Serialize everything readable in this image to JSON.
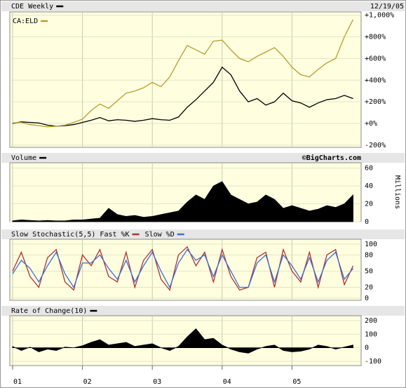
{
  "chart_data": [
    {
      "type": "line",
      "date": "12/19/05",
      "x": [
        2001,
        2001.125,
        2001.25,
        2001.375,
        2001.5,
        2001.625,
        2001.75,
        2001.875,
        2002,
        2002.125,
        2002.25,
        2002.375,
        2002.5,
        2002.625,
        2002.75,
        2002.875,
        2003,
        2003.125,
        2003.25,
        2003.375,
        2003.5,
        2003.625,
        2003.75,
        2003.875,
        2004,
        2004.125,
        2004.25,
        2004.375,
        2004.5,
        2004.625,
        2004.75,
        2004.875,
        2005,
        2005.125,
        2005.25,
        2005.375,
        2005.5,
        2005.625,
        2005.75,
        2005.875
      ],
      "series": [
        {
          "name": "CDE Weekly",
          "color": "#000000",
          "values": [
            0,
            15,
            10,
            5,
            -15,
            -25,
            -20,
            -10,
            10,
            30,
            55,
            25,
            35,
            30,
            20,
            30,
            45,
            35,
            30,
            60,
            150,
            220,
            300,
            380,
            520,
            450,
            300,
            200,
            230,
            170,
            200,
            280,
            210,
            190,
            150,
            190,
            220,
            230,
            260,
            230
          ]
        },
        {
          "name": "CA:ELD",
          "color": "#b89c2c",
          "values": [
            5,
            10,
            -10,
            -20,
            -30,
            -25,
            -15,
            10,
            40,
            120,
            180,
            140,
            210,
            280,
            300,
            330,
            380,
            340,
            430,
            580,
            720,
            680,
            640,
            760,
            770,
            680,
            600,
            570,
            620,
            660,
            700,
            620,
            520,
            450,
            430,
            500,
            560,
            600,
            800,
            960
          ]
        }
      ],
      "xlim": [
        2000.96,
        2005.99
      ],
      "xticks": [
        2001,
        2002,
        2003,
        2004,
        2005
      ],
      "ylim": [
        -220,
        1030
      ],
      "yticks": [
        {
          "value": -200,
          "label": "-200%"
        },
        {
          "value": 0,
          "label": "+0%"
        },
        {
          "value": 200,
          "label": "+200%"
        },
        {
          "value": 400,
          "label": "+400%"
        },
        {
          "value": 600,
          "label": "+600%"
        },
        {
          "value": 800,
          "label": "+800%"
        },
        {
          "value": 1000,
          "label": "+1,000%"
        }
      ],
      "grid": true
    },
    {
      "type": "area",
      "source": "©BigCharts.com",
      "y_label": "Millions",
      "x": [
        2001,
        2001.125,
        2001.25,
        2001.375,
        2001.5,
        2001.625,
        2001.75,
        2001.875,
        2002,
        2002.125,
        2002.25,
        2002.375,
        2002.5,
        2002.625,
        2002.75,
        2002.875,
        2003,
        2003.125,
        2003.25,
        2003.375,
        2003.5,
        2003.625,
        2003.75,
        2003.875,
        2004,
        2004.125,
        2004.25,
        2004.375,
        2004.5,
        2004.625,
        2004.75,
        2004.875,
        2005,
        2005.125,
        2005.25,
        2005.375,
        2005.5,
        2005.625,
        2005.75,
        2005.875
      ],
      "series": [
        {
          "name": "Volume",
          "color": "#000000",
          "values": [
            1,
            2,
            1.5,
            1,
            1.5,
            1,
            1,
            2,
            2,
            3,
            4,
            15,
            8,
            6,
            7,
            5,
            6,
            8,
            10,
            12,
            22,
            30,
            25,
            40,
            45,
            30,
            25,
            20,
            22,
            30,
            25,
            15,
            18,
            15,
            12,
            14,
            18,
            16,
            20,
            30
          ]
        }
      ],
      "xlim": [
        2000.96,
        2005.99
      ],
      "xticks": [
        2001,
        2002,
        2003,
        2004,
        2005
      ],
      "ylim": [
        0,
        66
      ],
      "yticks": [
        0,
        20,
        40,
        60
      ],
      "grid": true
    },
    {
      "type": "line",
      "x": [
        2001,
        2001.125,
        2001.25,
        2001.375,
        2001.5,
        2001.625,
        2001.75,
        2001.875,
        2002,
        2002.125,
        2002.25,
        2002.375,
        2002.5,
        2002.625,
        2002.75,
        2002.875,
        2003,
        2003.125,
        2003.25,
        2003.375,
        2003.5,
        2003.625,
        2003.75,
        2003.875,
        2004,
        2004.125,
        2004.25,
        2004.375,
        2004.5,
        2004.625,
        2004.75,
        2004.875,
        2005,
        2005.125,
        2005.25,
        2005.375,
        2005.5,
        2005.625,
        2005.75,
        2005.875
      ],
      "series": [
        {
          "name": "Slow Stochastic(5,5) Fast %K",
          "color": "#b03030",
          "values": [
            50,
            85,
            40,
            20,
            75,
            90,
            30,
            15,
            80,
            60,
            90,
            40,
            30,
            85,
            20,
            70,
            90,
            35,
            15,
            80,
            95,
            60,
            85,
            30,
            90,
            40,
            15,
            20,
            75,
            85,
            20,
            90,
            50,
            30,
            85,
            20,
            80,
            90,
            25,
            60
          ]
        },
        {
          "name": "Slow %D",
          "color": "#3a6fd8",
          "values": [
            45,
            70,
            55,
            30,
            60,
            85,
            45,
            20,
            65,
            65,
            80,
            55,
            35,
            70,
            30,
            60,
            85,
            50,
            20,
            65,
            90,
            70,
            80,
            40,
            80,
            50,
            20,
            20,
            65,
            80,
            30,
            80,
            60,
            35,
            75,
            30,
            70,
            85,
            35,
            55
          ]
        }
      ],
      "xlim": [
        2000.96,
        2005.99
      ],
      "xticks": [
        2001,
        2002,
        2003,
        2004,
        2005
      ],
      "ylim": [
        -4,
        109
      ],
      "yticks": [
        0,
        20,
        50,
        80,
        100
      ],
      "grid": true
    },
    {
      "type": "area",
      "x": [
        2001,
        2001.125,
        2001.25,
        2001.375,
        2001.5,
        2001.625,
        2001.75,
        2001.875,
        2002,
        2002.125,
        2002.25,
        2002.375,
        2002.5,
        2002.625,
        2002.75,
        2002.875,
        2003,
        2003.125,
        2003.25,
        2003.375,
        2003.5,
        2003.625,
        2003.75,
        2003.875,
        2004,
        2004.125,
        2004.25,
        2004.375,
        2004.5,
        2004.625,
        2004.75,
        2004.875,
        2005,
        2005.125,
        2005.25,
        2005.375,
        2005.5,
        2005.625,
        2005.75,
        2005.875
      ],
      "series": [
        {
          "name": "Rate of Change(10)",
          "color": "#000000",
          "values": [
            10,
            -20,
            5,
            -30,
            -10,
            -20,
            5,
            0,
            15,
            40,
            60,
            20,
            30,
            40,
            10,
            20,
            30,
            0,
            -20,
            10,
            80,
            140,
            60,
            70,
            20,
            -10,
            -30,
            -40,
            -10,
            10,
            20,
            -20,
            -30,
            -25,
            -10,
            20,
            10,
            -10,
            5,
            20
          ]
        }
      ],
      "xlim": [
        2000.96,
        2005.99
      ],
      "xticks": [
        {
          "value": 2001,
          "label": "01"
        },
        {
          "value": 2002,
          "label": "02"
        },
        {
          "value": 2003,
          "label": "03"
        },
        {
          "value": 2004,
          "label": "04"
        },
        {
          "value": 2005,
          "label": "05"
        }
      ],
      "ylim": [
        -131,
        236
      ],
      "yticks": [
        -100,
        0,
        100,
        200
      ],
      "grid": true
    }
  ]
}
